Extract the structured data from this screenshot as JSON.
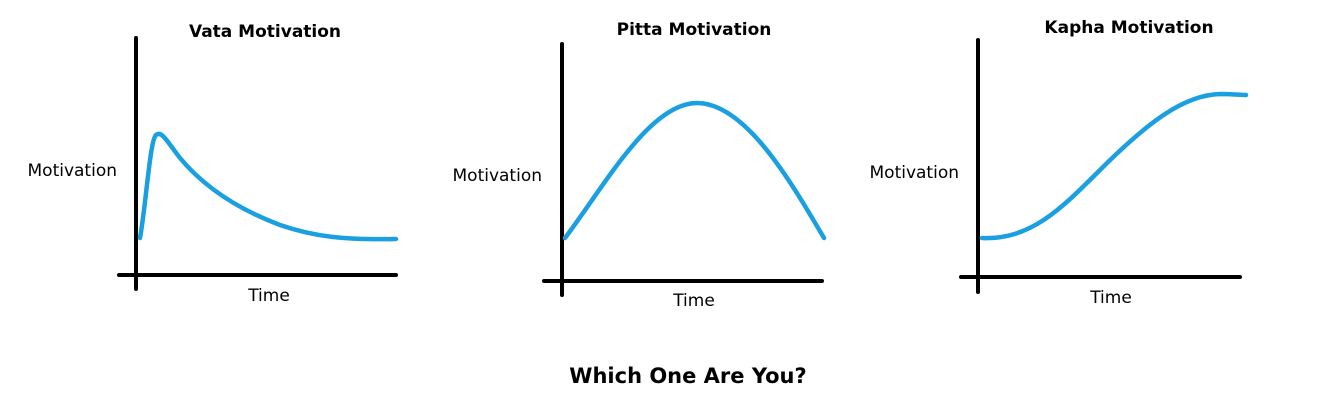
{
  "style": {
    "curve_color": "#1aa0e0",
    "axis_color": "#000000"
  },
  "panels": [
    {
      "title": "Vata Motivation",
      "x_label": "Time",
      "y_label": "Motivation",
      "trend": "sharp spike then decay to a low plateau"
    },
    {
      "title": "Pitta Motivation",
      "x_label": "Time",
      "y_label": "Motivation",
      "trend": "gradual rise to a peak then symmetric fall"
    },
    {
      "title": "Kapha Motivation",
      "x_label": "Time",
      "y_label": "Motivation",
      "trend": "slow S-shaped rise to a high plateau"
    }
  ],
  "footer": {
    "question": "Which One Are You?"
  }
}
